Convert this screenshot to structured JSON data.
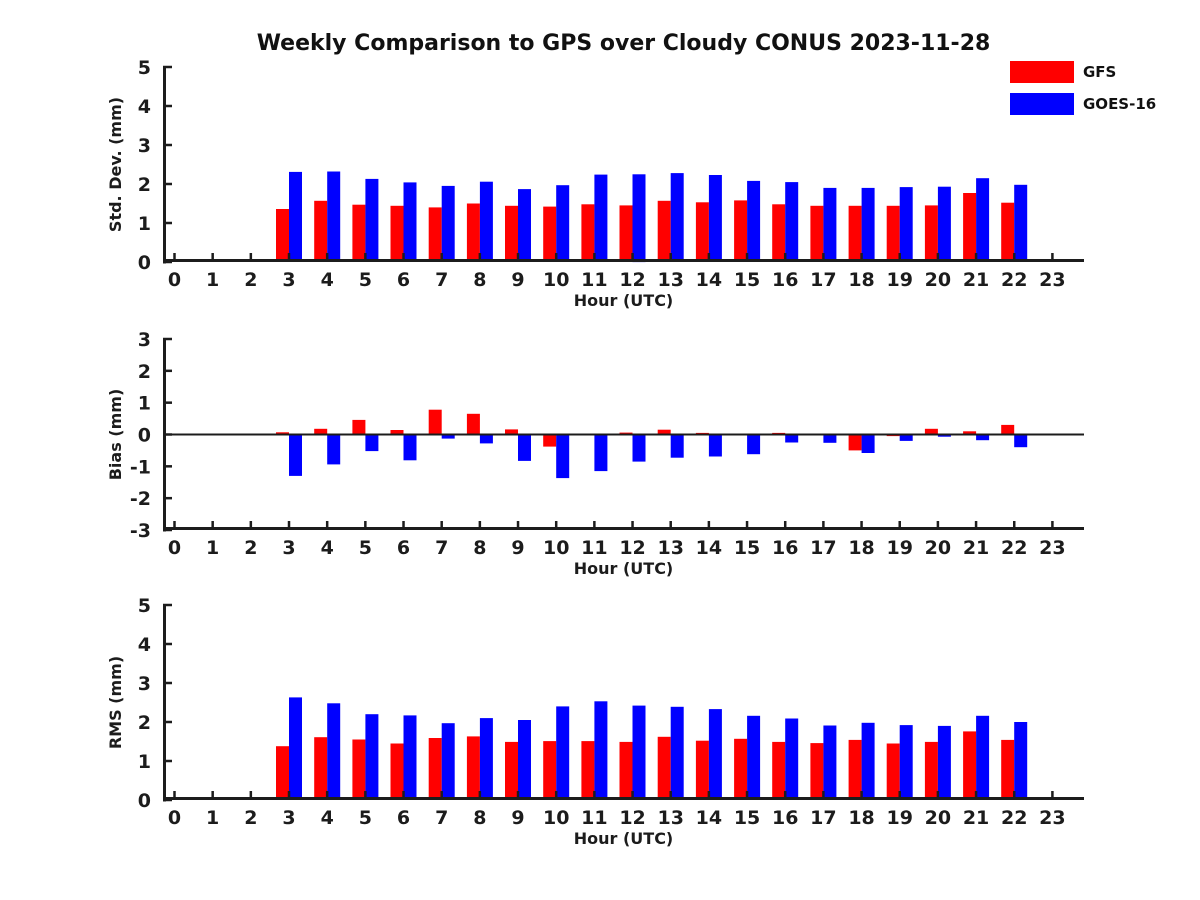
{
  "title": "Weekly Comparison to GPS over Cloudy CONUS 2023-11-28",
  "legend": {
    "position": "top-right",
    "items": [
      {
        "label": "GFS",
        "color": "#ff0000"
      },
      {
        "label": "GOES-16",
        "color": "#0000ff"
      }
    ]
  },
  "colors": {
    "gfs": "#ff0000",
    "goes16": "#0000ff",
    "axis": "#1c1c1c",
    "background": "#ffffff"
  },
  "chart_data": [
    {
      "key": "std_dev",
      "type": "bar",
      "title": "",
      "xlabel": "Hour (UTC)",
      "ylabel": "Std. Dev. (mm)",
      "ylim": [
        0,
        5
      ],
      "yticks": [
        0,
        1,
        2,
        3,
        4,
        5
      ],
      "grid": false,
      "zero_line": false,
      "categories": [
        "0",
        "1",
        "2",
        "3",
        "4",
        "5",
        "6",
        "7",
        "8",
        "9",
        "10",
        "11",
        "12",
        "13",
        "14",
        "15",
        "16",
        "17",
        "18",
        "19",
        "20",
        "21",
        "22",
        "23"
      ],
      "series": [
        {
          "name": "GFS",
          "color_ref": "gfs",
          "values": [
            null,
            null,
            null,
            1.36,
            1.57,
            1.47,
            1.44,
            1.4,
            1.5,
            1.44,
            1.42,
            1.48,
            1.45,
            1.57,
            1.53,
            1.58,
            1.48,
            1.44,
            1.44,
            1.44,
            1.45,
            1.77,
            1.52,
            null
          ]
        },
        {
          "name": "GOES-16",
          "color_ref": "goes16",
          "values": [
            null,
            null,
            null,
            2.31,
            2.32,
            2.13,
            2.04,
            1.95,
            2.06,
            1.87,
            1.97,
            2.24,
            2.25,
            2.28,
            2.23,
            2.08,
            2.05,
            1.9,
            1.9,
            1.92,
            1.93,
            2.15,
            1.98,
            null
          ]
        }
      ]
    },
    {
      "key": "bias",
      "type": "bar",
      "title": "",
      "xlabel": "Hour (UTC)",
      "ylabel": "Bias (mm)",
      "ylim": [
        -3,
        3
      ],
      "yticks": [
        -3,
        -2,
        -1,
        0,
        1,
        2,
        3
      ],
      "grid": false,
      "zero_line": true,
      "categories": [
        "0",
        "1",
        "2",
        "3",
        "4",
        "5",
        "6",
        "7",
        "8",
        "9",
        "10",
        "11",
        "12",
        "13",
        "14",
        "15",
        "16",
        "17",
        "18",
        "19",
        "20",
        "21",
        "22",
        "23"
      ],
      "series": [
        {
          "name": "GFS",
          "color_ref": "gfs",
          "values": [
            null,
            null,
            null,
            0.07,
            0.18,
            0.46,
            0.14,
            0.78,
            0.65,
            0.16,
            -0.38,
            0.02,
            0.06,
            0.15,
            0.05,
            0.03,
            0.05,
            -0.02,
            -0.5,
            -0.05,
            0.18,
            0.1,
            0.3,
            null
          ]
        },
        {
          "name": "GOES-16",
          "color_ref": "goes16",
          "values": [
            null,
            null,
            null,
            -1.3,
            -0.94,
            -0.52,
            -0.81,
            -0.13,
            -0.28,
            -0.83,
            -1.37,
            -1.15,
            -0.85,
            -0.73,
            -0.69,
            -0.62,
            -0.25,
            -0.26,
            -0.58,
            -0.2,
            -0.07,
            -0.18,
            -0.4,
            null
          ]
        }
      ]
    },
    {
      "key": "rms",
      "type": "bar",
      "title": "",
      "xlabel": "Hour (UTC)",
      "ylabel": "RMS (mm)",
      "ylim": [
        0,
        5
      ],
      "yticks": [
        0,
        1,
        2,
        3,
        4,
        5
      ],
      "grid": false,
      "zero_line": false,
      "categories": [
        "0",
        "1",
        "2",
        "3",
        "4",
        "5",
        "6",
        "7",
        "8",
        "9",
        "10",
        "11",
        "12",
        "13",
        "14",
        "15",
        "16",
        "17",
        "18",
        "19",
        "20",
        "21",
        "22",
        "23"
      ],
      "series": [
        {
          "name": "GFS",
          "color_ref": "gfs",
          "values": [
            null,
            null,
            null,
            1.38,
            1.61,
            1.55,
            1.45,
            1.59,
            1.63,
            1.49,
            1.51,
            1.51,
            1.49,
            1.62,
            1.52,
            1.57,
            1.49,
            1.46,
            1.54,
            1.45,
            1.49,
            1.76,
            1.54,
            null
          ]
        },
        {
          "name": "GOES-16",
          "color_ref": "goes16",
          "values": [
            null,
            null,
            null,
            2.63,
            2.48,
            2.2,
            2.17,
            1.97,
            2.1,
            2.05,
            2.4,
            2.53,
            2.42,
            2.39,
            2.33,
            2.16,
            2.09,
            1.91,
            1.98,
            1.92,
            1.9,
            2.16,
            2.0,
            null
          ]
        }
      ]
    }
  ]
}
